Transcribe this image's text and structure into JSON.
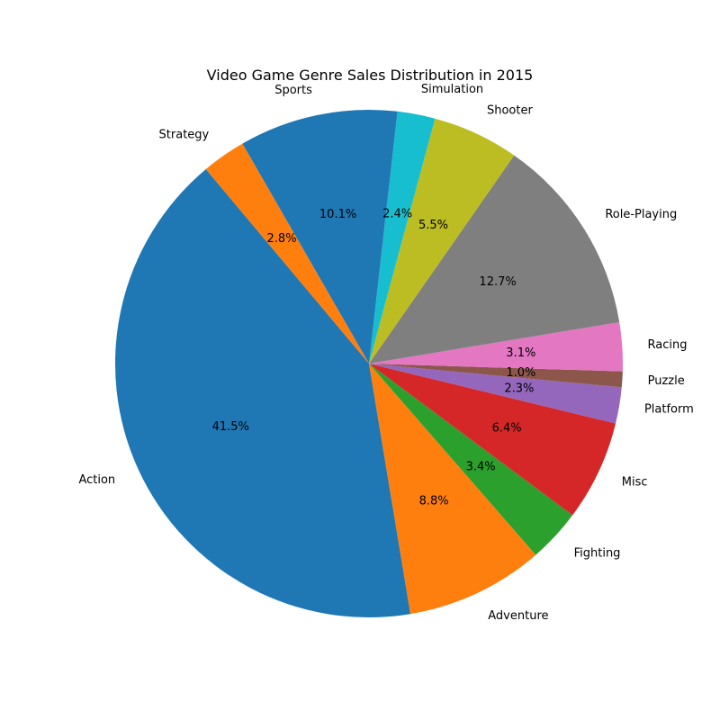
{
  "chart_data": {
    "type": "pie",
    "title": "Video Game Genre Sales Distribution in 2015",
    "start_angle_deg": 130,
    "direction": "counterclockwise",
    "slices": [
      {
        "label": "Action",
        "value": 41.5,
        "pct_text": "41.5%",
        "color": "#1f77b4"
      },
      {
        "label": "Adventure",
        "value": 8.8,
        "pct_text": "8.8%",
        "color": "#ff7f0e"
      },
      {
        "label": "Fighting",
        "value": 3.4,
        "pct_text": "3.4%",
        "color": "#2ca02c"
      },
      {
        "label": "Misc",
        "value": 6.4,
        "pct_text": "6.4%",
        "color": "#d62728"
      },
      {
        "label": "Platform",
        "value": 2.3,
        "pct_text": "2.3%",
        "color": "#9467bd"
      },
      {
        "label": "Puzzle",
        "value": 1.0,
        "pct_text": "1.0%",
        "color": "#8c564b"
      },
      {
        "label": "Racing",
        "value": 3.1,
        "pct_text": "3.1%",
        "color": "#e377c2"
      },
      {
        "label": "Role-Playing",
        "value": 12.7,
        "pct_text": "12.7%",
        "color": "#7f7f7f"
      },
      {
        "label": "Shooter",
        "value": 5.5,
        "pct_text": "5.5%",
        "color": "#bcbd22"
      },
      {
        "label": "Simulation",
        "value": 2.4,
        "pct_text": "2.4%",
        "color": "#17becf"
      },
      {
        "label": "Sports",
        "value": 10.1,
        "pct_text": "10.1%",
        "color": "#1f77b4"
      },
      {
        "label": "Strategy",
        "value": 2.8,
        "pct_text": "2.8%",
        "color": "#ff7f0e"
      }
    ]
  }
}
